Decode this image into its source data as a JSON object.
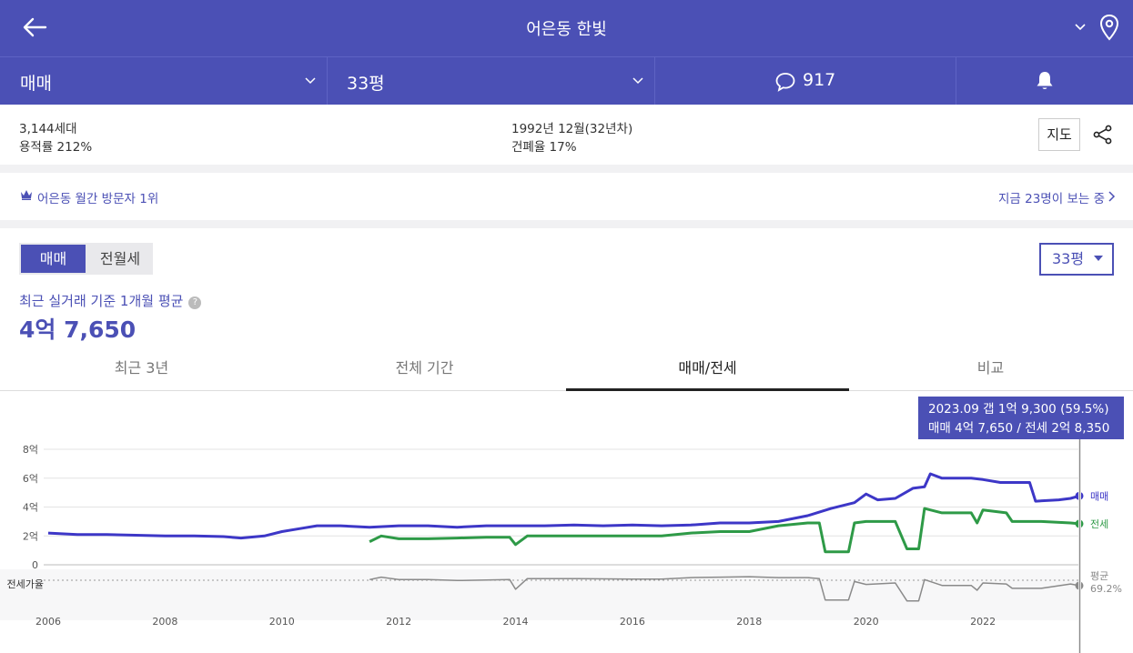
{
  "header": {
    "title": "어은동 한빛"
  },
  "subbar": {
    "trade_type": "매매",
    "area": "33평",
    "comment_count": "917"
  },
  "info": {
    "households": "3,144세대",
    "floor_area_ratio": "용적률 212%",
    "built": "1992년 12월(32년차)",
    "coverage_ratio": "건폐율 17%",
    "map_button": "지도"
  },
  "rank": {
    "text": "어은동 월간 방문자 1위",
    "viewers": "지금 23명이 보는 중"
  },
  "segment": {
    "sale": "매매",
    "rent": "전월세"
  },
  "size_select": {
    "value": "33평"
  },
  "average": {
    "label": "최근 실거래 기준 1개월 평균",
    "value": "4억 7,650"
  },
  "tabs": [
    {
      "label": "최근 3년"
    },
    {
      "label": "전체 기간"
    },
    {
      "label": "매매/전세"
    },
    {
      "label": "비교"
    }
  ],
  "tooltip": {
    "line1": "2023.09  갭 1억 9,300 (59.5%)",
    "line2": "매매 4억 7,650 / 전세 2억 8,350"
  },
  "colors": {
    "accent": "#4b50b5",
    "sale": "#3d37c7",
    "jeonse": "#2e9a47",
    "ratio": "#8a8a8a"
  },
  "chart_data": {
    "type": "line",
    "x_ticks": [
      "2006",
      "2008",
      "2010",
      "2012",
      "2014",
      "2016",
      "2018",
      "2020",
      "2022"
    ],
    "y_ticks": [
      "8억",
      "6억",
      "4억",
      "2억",
      "0"
    ],
    "ratio_axis_label": "전세가율",
    "ylim": [
      0,
      8
    ],
    "unit": "억",
    "series": [
      {
        "name": "매매",
        "end_label": "매매",
        "points": [
          [
            2006.0,
            2.2
          ],
          [
            2006.5,
            2.1
          ],
          [
            2007.0,
            2.1
          ],
          [
            2007.5,
            2.05
          ],
          [
            2008.0,
            2.0
          ],
          [
            2008.5,
            2.0
          ],
          [
            2009.0,
            1.95
          ],
          [
            2009.3,
            1.85
          ],
          [
            2009.7,
            2.0
          ],
          [
            2010.0,
            2.3
          ],
          [
            2010.3,
            2.5
          ],
          [
            2010.6,
            2.7
          ],
          [
            2011.0,
            2.7
          ],
          [
            2011.5,
            2.6
          ],
          [
            2012.0,
            2.7
          ],
          [
            2012.5,
            2.7
          ],
          [
            2013.0,
            2.6
          ],
          [
            2013.5,
            2.7
          ],
          [
            2014.0,
            2.7
          ],
          [
            2014.5,
            2.7
          ],
          [
            2015.0,
            2.75
          ],
          [
            2015.5,
            2.7
          ],
          [
            2016.0,
            2.75
          ],
          [
            2016.5,
            2.7
          ],
          [
            2017.0,
            2.75
          ],
          [
            2017.5,
            2.9
          ],
          [
            2018.0,
            2.9
          ],
          [
            2018.5,
            3.0
          ],
          [
            2019.0,
            3.4
          ],
          [
            2019.4,
            3.9
          ],
          [
            2019.8,
            4.3
          ],
          [
            2020.0,
            4.9
          ],
          [
            2020.2,
            4.5
          ],
          [
            2020.5,
            4.6
          ],
          [
            2020.8,
            5.3
          ],
          [
            2021.0,
            5.4
          ],
          [
            2021.1,
            6.3
          ],
          [
            2021.3,
            6.0
          ],
          [
            2021.8,
            6.0
          ],
          [
            2022.0,
            5.9
          ],
          [
            2022.3,
            5.7
          ],
          [
            2022.8,
            5.7
          ],
          [
            2022.9,
            4.4
          ],
          [
            2023.3,
            4.5
          ],
          [
            2023.5,
            4.6
          ],
          [
            2023.65,
            4.77
          ]
        ]
      },
      {
        "name": "전세",
        "end_label": "전세",
        "points": [
          [
            2011.5,
            1.6
          ],
          [
            2011.7,
            2.0
          ],
          [
            2012.0,
            1.8
          ],
          [
            2012.5,
            1.8
          ],
          [
            2013.0,
            1.85
          ],
          [
            2013.5,
            1.9
          ],
          [
            2013.9,
            1.9
          ],
          [
            2014.0,
            1.4
          ],
          [
            2014.2,
            2.0
          ],
          [
            2015.0,
            2.0
          ],
          [
            2016.0,
            2.0
          ],
          [
            2016.5,
            2.0
          ],
          [
            2017.0,
            2.2
          ],
          [
            2017.5,
            2.3
          ],
          [
            2018.0,
            2.3
          ],
          [
            2018.5,
            2.7
          ],
          [
            2019.0,
            2.9
          ],
          [
            2019.2,
            2.9
          ],
          [
            2019.3,
            0.9
          ],
          [
            2019.7,
            0.9
          ],
          [
            2019.8,
            2.9
          ],
          [
            2020.0,
            3.0
          ],
          [
            2020.5,
            3.0
          ],
          [
            2020.7,
            1.1
          ],
          [
            2020.9,
            1.1
          ],
          [
            2021.0,
            3.9
          ],
          [
            2021.3,
            3.6
          ],
          [
            2021.8,
            3.6
          ],
          [
            2021.9,
            2.9
          ],
          [
            2022.0,
            3.8
          ],
          [
            2022.4,
            3.6
          ],
          [
            2022.5,
            3.0
          ],
          [
            2023.0,
            3.0
          ],
          [
            2023.5,
            2.9
          ],
          [
            2023.65,
            2.84
          ]
        ]
      },
      {
        "name": "전세가율",
        "end_label": "평균 69.2%",
        "points": [
          [
            2011.5,
            72
          ],
          [
            2011.7,
            77
          ],
          [
            2012.0,
            72
          ],
          [
            2012.5,
            72
          ],
          [
            2013.0,
            70
          ],
          [
            2013.5,
            71
          ],
          [
            2013.9,
            72
          ],
          [
            2014.0,
            52
          ],
          [
            2014.2,
            74
          ],
          [
            2015.0,
            74
          ],
          [
            2016.0,
            73
          ],
          [
            2016.5,
            73
          ],
          [
            2017.0,
            76
          ],
          [
            2017.5,
            77
          ],
          [
            2018.0,
            78
          ],
          [
            2018.5,
            76
          ],
          [
            2019.0,
            76
          ],
          [
            2019.2,
            74
          ],
          [
            2019.3,
            30
          ],
          [
            2019.7,
            30
          ],
          [
            2019.8,
            68
          ],
          [
            2020.0,
            62
          ],
          [
            2020.5,
            65
          ],
          [
            2020.7,
            28
          ],
          [
            2020.9,
            28
          ],
          [
            2021.0,
            72
          ],
          [
            2021.3,
            60
          ],
          [
            2021.8,
            60
          ],
          [
            2021.9,
            50
          ],
          [
            2022.0,
            65
          ],
          [
            2022.4,
            63
          ],
          [
            2022.5,
            54
          ],
          [
            2023.0,
            54
          ],
          [
            2023.5,
            63
          ],
          [
            2023.65,
            59.5
          ]
        ]
      }
    ]
  }
}
